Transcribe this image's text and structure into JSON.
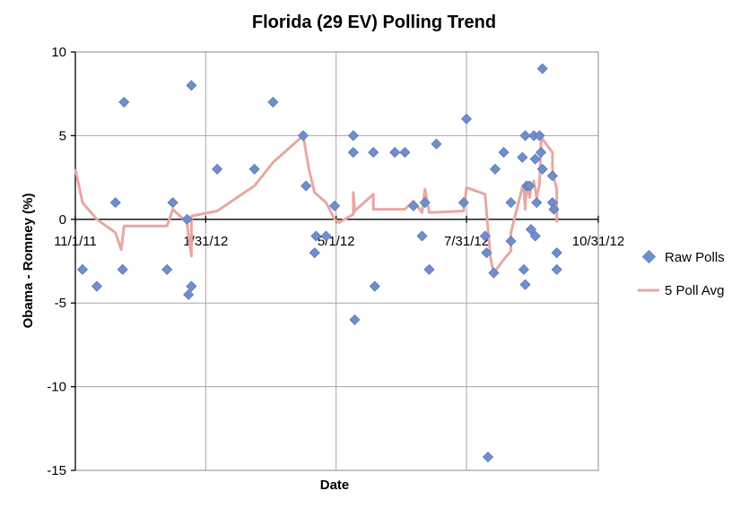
{
  "chart_data": {
    "type": "scatter",
    "title": "Florida (29 EV) Polling Trend",
    "xlabel": "Date",
    "ylabel": "Obama - Romney (%)",
    "x_ticks": [
      "11/1/11",
      "1/31/12",
      "5/1/12",
      "7/31/12",
      "10/31/12"
    ],
    "x_tick_dates": [
      "2011-11-01",
      "2012-01-31",
      "2012-05-01",
      "2012-07-31",
      "2012-10-31"
    ],
    "xlim": [
      "2011-11-01",
      "2012-10-31"
    ],
    "y_ticks": [
      10,
      5,
      0,
      -5,
      -10,
      -15
    ],
    "ylim": [
      -15,
      10
    ],
    "grid": true,
    "legend_position": "right",
    "colors": {
      "raw_polls": "#6f8fcc",
      "avg_line": "#e8a7a3"
    },
    "series": [
      {
        "name": "Raw Polls",
        "type": "scatter",
        "points": [
          [
            "2011-11-06",
            -3
          ],
          [
            "2011-11-16",
            -4
          ],
          [
            "2011-11-29",
            1
          ],
          [
            "2011-12-05",
            7
          ],
          [
            "2011-12-04",
            -3
          ],
          [
            "2012-01-04",
            -3
          ],
          [
            "2012-01-08",
            1
          ],
          [
            "2012-01-18",
            0
          ],
          [
            "2012-01-19",
            -4.5
          ],
          [
            "2012-01-21",
            -4
          ],
          [
            "2012-01-21",
            8
          ],
          [
            "2012-02-08",
            3
          ],
          [
            "2012-03-05",
            3
          ],
          [
            "2012-03-18",
            7
          ],
          [
            "2012-04-08",
            5
          ],
          [
            "2012-04-10",
            2
          ],
          [
            "2012-04-16",
            -2
          ],
          [
            "2012-04-17",
            -1
          ],
          [
            "2012-04-24",
            -1
          ],
          [
            "2012-04-30",
            0.8
          ],
          [
            "2012-05-13",
            5
          ],
          [
            "2012-05-13",
            4
          ],
          [
            "2012-05-14",
            -6
          ],
          [
            "2012-05-27",
            4
          ],
          [
            "2012-05-28",
            -4
          ],
          [
            "2012-06-11",
            4
          ],
          [
            "2012-06-18",
            4
          ],
          [
            "2012-06-24",
            0.8
          ],
          [
            "2012-06-30",
            -1
          ],
          [
            "2012-07-02",
            1
          ],
          [
            "2012-07-05",
            -3
          ],
          [
            "2012-07-10",
            4.5
          ],
          [
            "2012-07-29",
            1
          ],
          [
            "2012-07-31",
            6
          ],
          [
            "2012-08-13",
            -1
          ],
          [
            "2012-08-14",
            -2
          ],
          [
            "2012-08-15",
            -14.2
          ],
          [
            "2012-08-19",
            -3.2
          ],
          [
            "2012-08-20",
            3
          ],
          [
            "2012-08-26",
            4
          ],
          [
            "2012-08-31",
            1
          ],
          [
            "2012-08-31",
            -1.3
          ],
          [
            "2012-09-08",
            3.7
          ],
          [
            "2012-09-09",
            -3
          ],
          [
            "2012-09-10",
            5
          ],
          [
            "2012-09-10",
            -3.9
          ],
          [
            "2012-09-11",
            2
          ],
          [
            "2012-09-13",
            2
          ],
          [
            "2012-09-14",
            -0.6
          ],
          [
            "2012-09-16",
            5
          ],
          [
            "2012-09-17",
            3.6
          ],
          [
            "2012-09-17",
            -1
          ],
          [
            "2012-09-18",
            1
          ],
          [
            "2012-09-20",
            5
          ],
          [
            "2012-09-21",
            4
          ],
          [
            "2012-09-22",
            9
          ],
          [
            "2012-09-22",
            3
          ],
          [
            "2012-09-29",
            2.6
          ],
          [
            "2012-09-29",
            1
          ],
          [
            "2012-09-30",
            0.6
          ],
          [
            "2012-10-02",
            -2
          ],
          [
            "2012-10-02",
            -3
          ]
        ]
      },
      {
        "name": "5 Poll Avg",
        "type": "line",
        "points": [
          [
            "2011-11-01",
            3
          ],
          [
            "2011-11-06",
            1
          ],
          [
            "2011-11-16",
            0
          ],
          [
            "2011-11-29",
            -0.8
          ],
          [
            "2011-12-03",
            -1.8
          ],
          [
            "2011-12-05",
            -0.4
          ],
          [
            "2012-01-04",
            -0.4
          ],
          [
            "2012-01-08",
            0.6
          ],
          [
            "2012-01-18",
            -0.2
          ],
          [
            "2012-01-19",
            -1
          ],
          [
            "2012-01-21",
            -2.2
          ],
          [
            "2012-01-21",
            0.2
          ],
          [
            "2012-02-08",
            0.5
          ],
          [
            "2012-03-05",
            2
          ],
          [
            "2012-03-18",
            3.4
          ],
          [
            "2012-04-08",
            5
          ],
          [
            "2012-04-10",
            4
          ],
          [
            "2012-04-12",
            3
          ],
          [
            "2012-04-16",
            1.6
          ],
          [
            "2012-04-24",
            1
          ],
          [
            "2012-04-30",
            0
          ],
          [
            "2012-05-03",
            -0.2
          ],
          [
            "2012-05-13",
            0.3
          ],
          [
            "2012-05-13",
            1.6
          ],
          [
            "2012-05-14",
            0.5
          ],
          [
            "2012-05-27",
            1.5
          ],
          [
            "2012-05-27",
            0.6
          ],
          [
            "2012-06-18",
            0.6
          ],
          [
            "2012-06-24",
            1.1
          ],
          [
            "2012-06-30",
            0.4
          ],
          [
            "2012-07-02",
            1.8
          ],
          [
            "2012-07-05",
            0.4
          ],
          [
            "2012-07-29",
            0.5
          ],
          [
            "2012-07-31",
            1.9
          ],
          [
            "2012-08-13",
            1.5
          ],
          [
            "2012-08-15",
            -0.6
          ],
          [
            "2012-08-17",
            -2.4
          ],
          [
            "2012-08-19",
            -3.2
          ],
          [
            "2012-08-26",
            -2.4
          ],
          [
            "2012-08-31",
            -1.9
          ],
          [
            "2012-08-31",
            -0.8
          ],
          [
            "2012-09-08",
            1.9
          ],
          [
            "2012-09-09",
            2
          ],
          [
            "2012-09-10",
            0.6
          ],
          [
            "2012-09-11",
            2.2
          ],
          [
            "2012-09-13",
            1.3
          ],
          [
            "2012-09-14",
            1.8
          ],
          [
            "2012-09-16",
            2.3
          ],
          [
            "2012-09-17",
            1.8
          ],
          [
            "2012-09-18",
            1.3
          ],
          [
            "2012-09-20",
            2.1
          ],
          [
            "2012-09-21",
            4.6
          ],
          [
            "2012-09-22",
            4.8
          ],
          [
            "2012-09-29",
            4
          ],
          [
            "2012-09-29",
            3
          ],
          [
            "2012-09-30",
            2.5
          ],
          [
            "2012-10-02",
            1.8
          ],
          [
            "2012-10-02",
            -0.2
          ]
        ]
      }
    ]
  }
}
